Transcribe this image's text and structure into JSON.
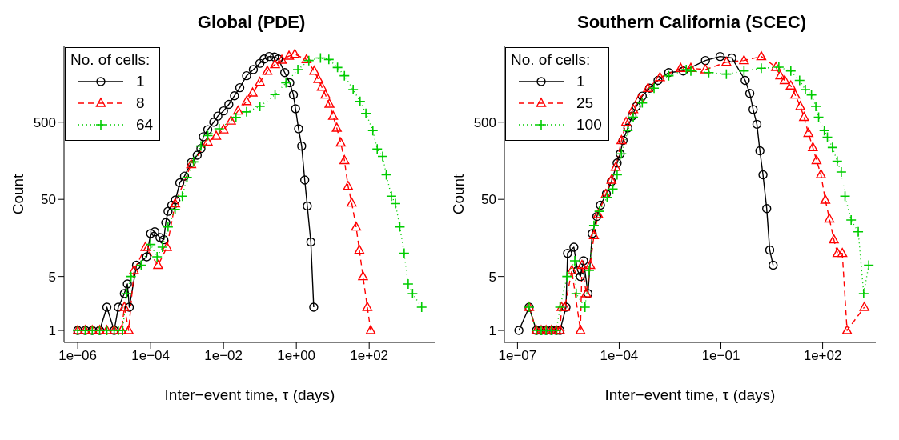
{
  "chart_data": [
    {
      "type": "line",
      "title": "Global (PDE)",
      "xlabel": "Inter−event time, τ (days)",
      "ylabel": "Count",
      "legend_title": "No. of cells:",
      "legend": "top left",
      "log": "xy",
      "xlim": [
        4.2e-07,
        6600
      ],
      "ylim": [
        0.7,
        4800
      ],
      "xticks": [
        {
          "value": 1e-06,
          "label": "1e−06"
        },
        {
          "value": 0.0001,
          "label": "1e−04"
        },
        {
          "value": 0.01,
          "label": "1e−02"
        },
        {
          "value": 1,
          "label": "1e+00"
        },
        {
          "value": 100,
          "label": "1e+02"
        }
      ],
      "yticks": [
        1,
        5,
        50,
        500
      ],
      "series": [
        {
          "name": "1",
          "color": "#000000",
          "marker": "circle",
          "line_style": "solid",
          "x": [
            1e-06,
            1.6e-06,
            2.5e-06,
            4e-06,
            6.3e-06,
            1e-05,
            1.3e-05,
            1.9e-05,
            2.3e-05,
            2.6e-05,
            4.1e-05,
            7.8e-05,
            0.0001,
            0.00013,
            0.00018,
            0.00023,
            0.00026,
            0.0003,
            0.00038,
            0.00048,
            0.00063,
            0.00085,
            0.0013,
            0.0019,
            0.0024,
            0.0028,
            0.0037,
            0.0054,
            0.007,
            0.01,
            0.014,
            0.02,
            0.028,
            0.043,
            0.066,
            0.1,
            0.13,
            0.18,
            0.25,
            0.32,
            0.48,
            0.66,
            0.83,
            0.95,
            1.15,
            1.4,
            1.7,
            2.0,
            2.5,
            3.0
          ],
          "values": [
            1,
            1,
            1,
            1,
            2,
            1,
            2,
            3,
            4,
            2,
            7,
            9,
            18,
            19,
            16,
            15,
            25,
            35,
            42,
            49,
            82,
            100,
            150,
            187,
            228,
            324,
            400,
            500,
            600,
            700,
            850,
            1100,
            1400,
            2000,
            2400,
            2900,
            3300,
            3550,
            3500,
            3300,
            2200,
            1620,
            1130,
            745,
            410,
            245,
            89,
            41,
            14,
            2
          ]
        },
        {
          "name": "8",
          "color": "#ff0000",
          "marker": "triangle",
          "line_style": "dashed",
          "x": [
            1e-06,
            1.6e-06,
            2.5e-06,
            4e-06,
            6.3e-06,
            1e-05,
            1.6e-05,
            1.9e-05,
            2.5e-05,
            3.5e-05,
            7.2e-05,
            0.00016,
            0.00028,
            0.00047,
            0.0013,
            0.0037,
            0.0063,
            0.01,
            0.016,
            0.025,
            0.043,
            0.063,
            0.1,
            0.16,
            0.26,
            0.4,
            0.63,
            0.91,
            1.9,
            3.1,
            4,
            5,
            6.3,
            8.1,
            10.2,
            12.9,
            16.6,
            20.9,
            26.3,
            33.1,
            43.7,
            53.7,
            67.6,
            89,
            110
          ],
          "values": [
            1,
            1,
            1,
            1,
            1,
            1,
            1,
            2,
            1,
            6,
            12,
            7,
            12,
            44,
            142,
            277,
            330,
            400,
            520,
            700,
            930,
            1200,
            1650,
            2300,
            2800,
            3200,
            3600,
            3800,
            3250,
            2300,
            1800,
            1430,
            1130,
            860,
            600,
            420,
            270,
            160,
            74,
            45,
            22,
            11,
            5,
            2,
            1
          ]
        },
        {
          "name": "64",
          "color": "#00cc00",
          "marker": "cross",
          "line_style": "dotted",
          "x": [
            1e-06,
            1.6e-06,
            2.5e-06,
            4e-06,
            6.3e-06,
            1e-05,
            1.3e-05,
            1.7e-05,
            2.2e-05,
            2.9e-05,
            5.5e-05,
            0.0001,
            0.00015,
            0.00021,
            0.0003,
            0.00047,
            0.00074,
            0.001,
            0.0015,
            0.0024,
            0.0037,
            0.0076,
            0.022,
            0.043,
            0.1,
            0.26,
            0.52,
            1.1,
            2.2,
            4.6,
            7.8,
            13.5,
            20.9,
            36.3,
            56.2,
            81.3,
            126,
            166,
            234,
            295,
            407,
            525,
            692,
            912,
            1175,
            1549,
            2754
          ],
          "values": [
            1,
            1,
            1,
            1,
            1,
            1,
            1,
            1,
            3,
            5,
            7,
            13,
            9,
            12,
            22,
            37,
            55,
            96,
            153,
            245,
            335,
            410,
            575,
            680,
            800,
            1140,
            1620,
            2400,
            3150,
            3400,
            3250,
            2560,
            2000,
            1320,
            930,
            650,
            390,
            225,
            180,
            104,
            55,
            44,
            22,
            10,
            4,
            3,
            2
          ]
        }
      ]
    },
    {
      "type": "line",
      "title": "Southern California (SCEC)",
      "xlabel": "Inter−event time, τ (days)",
      "ylabel": "Count",
      "legend_title": "No. of cells:",
      "legend": "top left",
      "log": "xy",
      "xlim": [
        4.1e-08,
        3700
      ],
      "ylim": [
        0.7,
        4800
      ],
      "xticks": [
        {
          "value": 1e-07,
          "label": "1e−07"
        },
        {
          "value": 0.0001,
          "label": "1e−04"
        },
        {
          "value": 0.1,
          "label": "1e−01"
        },
        {
          "value": 100,
          "label": "1e+02"
        }
      ],
      "yticks": [
        1,
        5,
        50,
        500
      ],
      "series": [
        {
          "name": "1",
          "color": "#000000",
          "marker": "circle",
          "line_style": "solid",
          "x": [
            1.1e-07,
            2.2e-07,
            3.6e-07,
            5e-07,
            7e-07,
            1e-06,
            1.4e-06,
            1.8e-06,
            2.7e-06,
            3e-06,
            4.6e-06,
            5.9e-06,
            7.2e-06,
            8.9e-06,
            1.2e-05,
            1.6e-05,
            2.2e-05,
            2.8e-05,
            4.2e-05,
            5.9e-05,
            8.7e-05,
            0.000107,
            0.00013,
            0.00018,
            0.00024,
            0.00032,
            0.00048,
            0.00079,
            0.0014,
            0.0029,
            0.0078,
            0.035,
            0.095,
            0.21,
            0.52,
            0.71,
            0.89,
            1.15,
            1.41,
            1.74,
            2.24,
            2.75,
            3.47
          ],
          "values": [
            1,
            2,
            1,
            1,
            1,
            1,
            1,
            1,
            2,
            10,
            12,
            6,
            5,
            8,
            3,
            18,
            30,
            42,
            59,
            85,
            148,
            195,
            290,
            420,
            600,
            800,
            1090,
            1380,
            1740,
            2200,
            2300,
            3150,
            3550,
            3400,
            1740,
            1180,
            730,
            470,
            213,
            104,
            38,
            11,
            7
          ]
        },
        {
          "name": "25",
          "color": "#ff0000",
          "marker": "triangle",
          "line_style": "dashed",
          "x": [
            2.2e-07,
            3.6e-07,
            5e-07,
            7e-07,
            1e-06,
            1.4e-06,
            1.8e-06,
            2e-06,
            2.5e-06,
            4e-06,
            7.2e-06,
            8e-06,
            1.07e-05,
            1.4e-05,
            1.8e-05,
            2.4e-05,
            4e-05,
            5.9e-05,
            7.9e-05,
            0.000117,
            0.00016,
            0.00026,
            0.00039,
            0.00071,
            0.0016,
            0.0065,
            0.013,
            0.035,
            0.145,
            0.48,
            1.55,
            4.2,
            5.6,
            7.6,
            11.5,
            15.5,
            21.9,
            28.2,
            38,
            51.3,
            66,
            89,
            120,
            158,
            214,
            275,
            380,
            525,
            1700
          ],
          "values": [
            2,
            1,
            1,
            1,
            1,
            1,
            1,
            2,
            2,
            6,
            1,
            7,
            3,
            7,
            17,
            32,
            58,
            89,
            131,
            290,
            500,
            730,
            1000,
            1380,
            1900,
            2500,
            2500,
            2400,
            3000,
            3150,
            3550,
            2580,
            2000,
            1740,
            1480,
            1130,
            800,
            580,
            360,
            235,
            160,
            105,
            49,
            28,
            15,
            10,
            10,
            1,
            2
          ]
        },
        {
          "name": "100",
          "color": "#00cc00",
          "marker": "cross",
          "line_style": "dotted",
          "x": [
            2.2e-07,
            3.6e-07,
            5e-07,
            7e-07,
            1e-06,
            1.4e-06,
            1.8e-06,
            2.9e-06,
            4.9e-06,
            5.4e-06,
            9.8e-06,
            1.3e-05,
            1.8e-05,
            2.6e-05,
            4.4e-05,
            6.5e-05,
            8.7e-05,
            0.000117,
            0.00018,
            0.00026,
            0.00048,
            0.00107,
            0.0029,
            0.0095,
            0.013,
            0.044,
            0.145,
            0.48,
            1.55,
            5.1,
            11.5,
            20.9,
            30.9,
            46.8,
            63,
            76,
            112,
            138,
            195,
            269,
            355,
            457,
            692,
            1122,
            1622,
            2291
          ],
          "values": [
            2,
            1,
            1,
            1,
            1,
            1,
            2,
            5,
            8,
            3,
            2,
            6,
            23,
            35,
            53,
            68,
            104,
            195,
            390,
            580,
            890,
            1380,
            2000,
            2400,
            2300,
            2200,
            2100,
            2300,
            2500,
            2580,
            2300,
            1740,
            1320,
            1130,
            800,
            580,
            390,
            320,
            235,
            156,
            113,
            55,
            27,
            19,
            3,
            7
          ]
        }
      ]
    }
  ]
}
